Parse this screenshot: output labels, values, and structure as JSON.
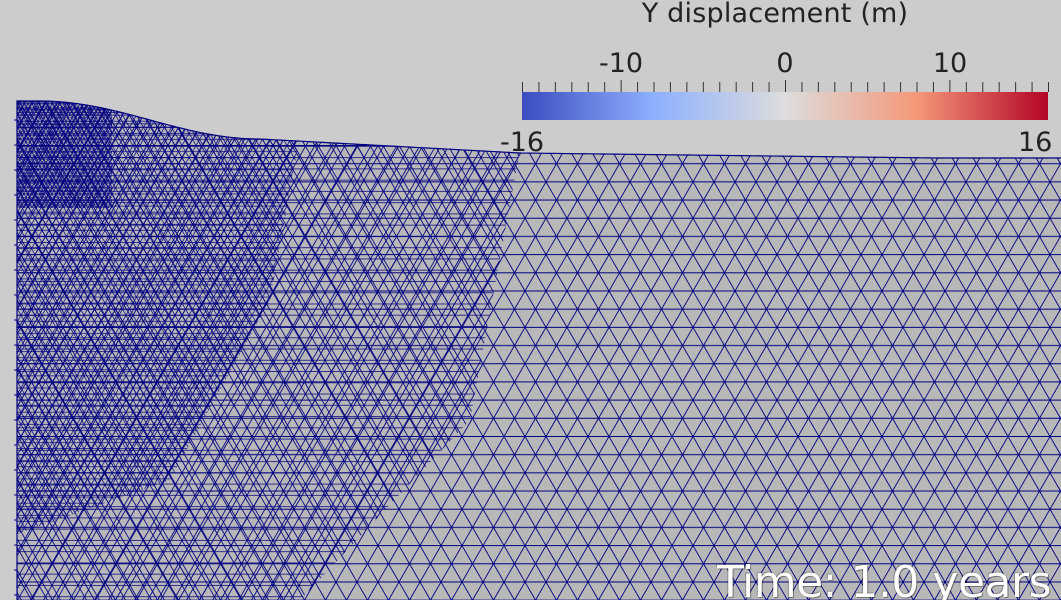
{
  "scalar_bar": {
    "title": "Y displacement (m)",
    "range_min_label": "-16",
    "range_max_label": "16",
    "range_min": -16,
    "range_max": 16,
    "major_ticks": [
      {
        "value": -10,
        "label": "-10"
      },
      {
        "value": 0,
        "label": "0"
      },
      {
        "value": 10,
        "label": "10"
      }
    ],
    "colormap": [
      "#3b4cc0",
      "#8db0fe",
      "#dddddd",
      "#f4987a",
      "#b40426"
    ]
  },
  "mesh": {
    "edge_color": "#000080",
    "fill_color": "#b8b8b8"
  },
  "annotation": {
    "time_text": "Time: 1.0 years"
  }
}
